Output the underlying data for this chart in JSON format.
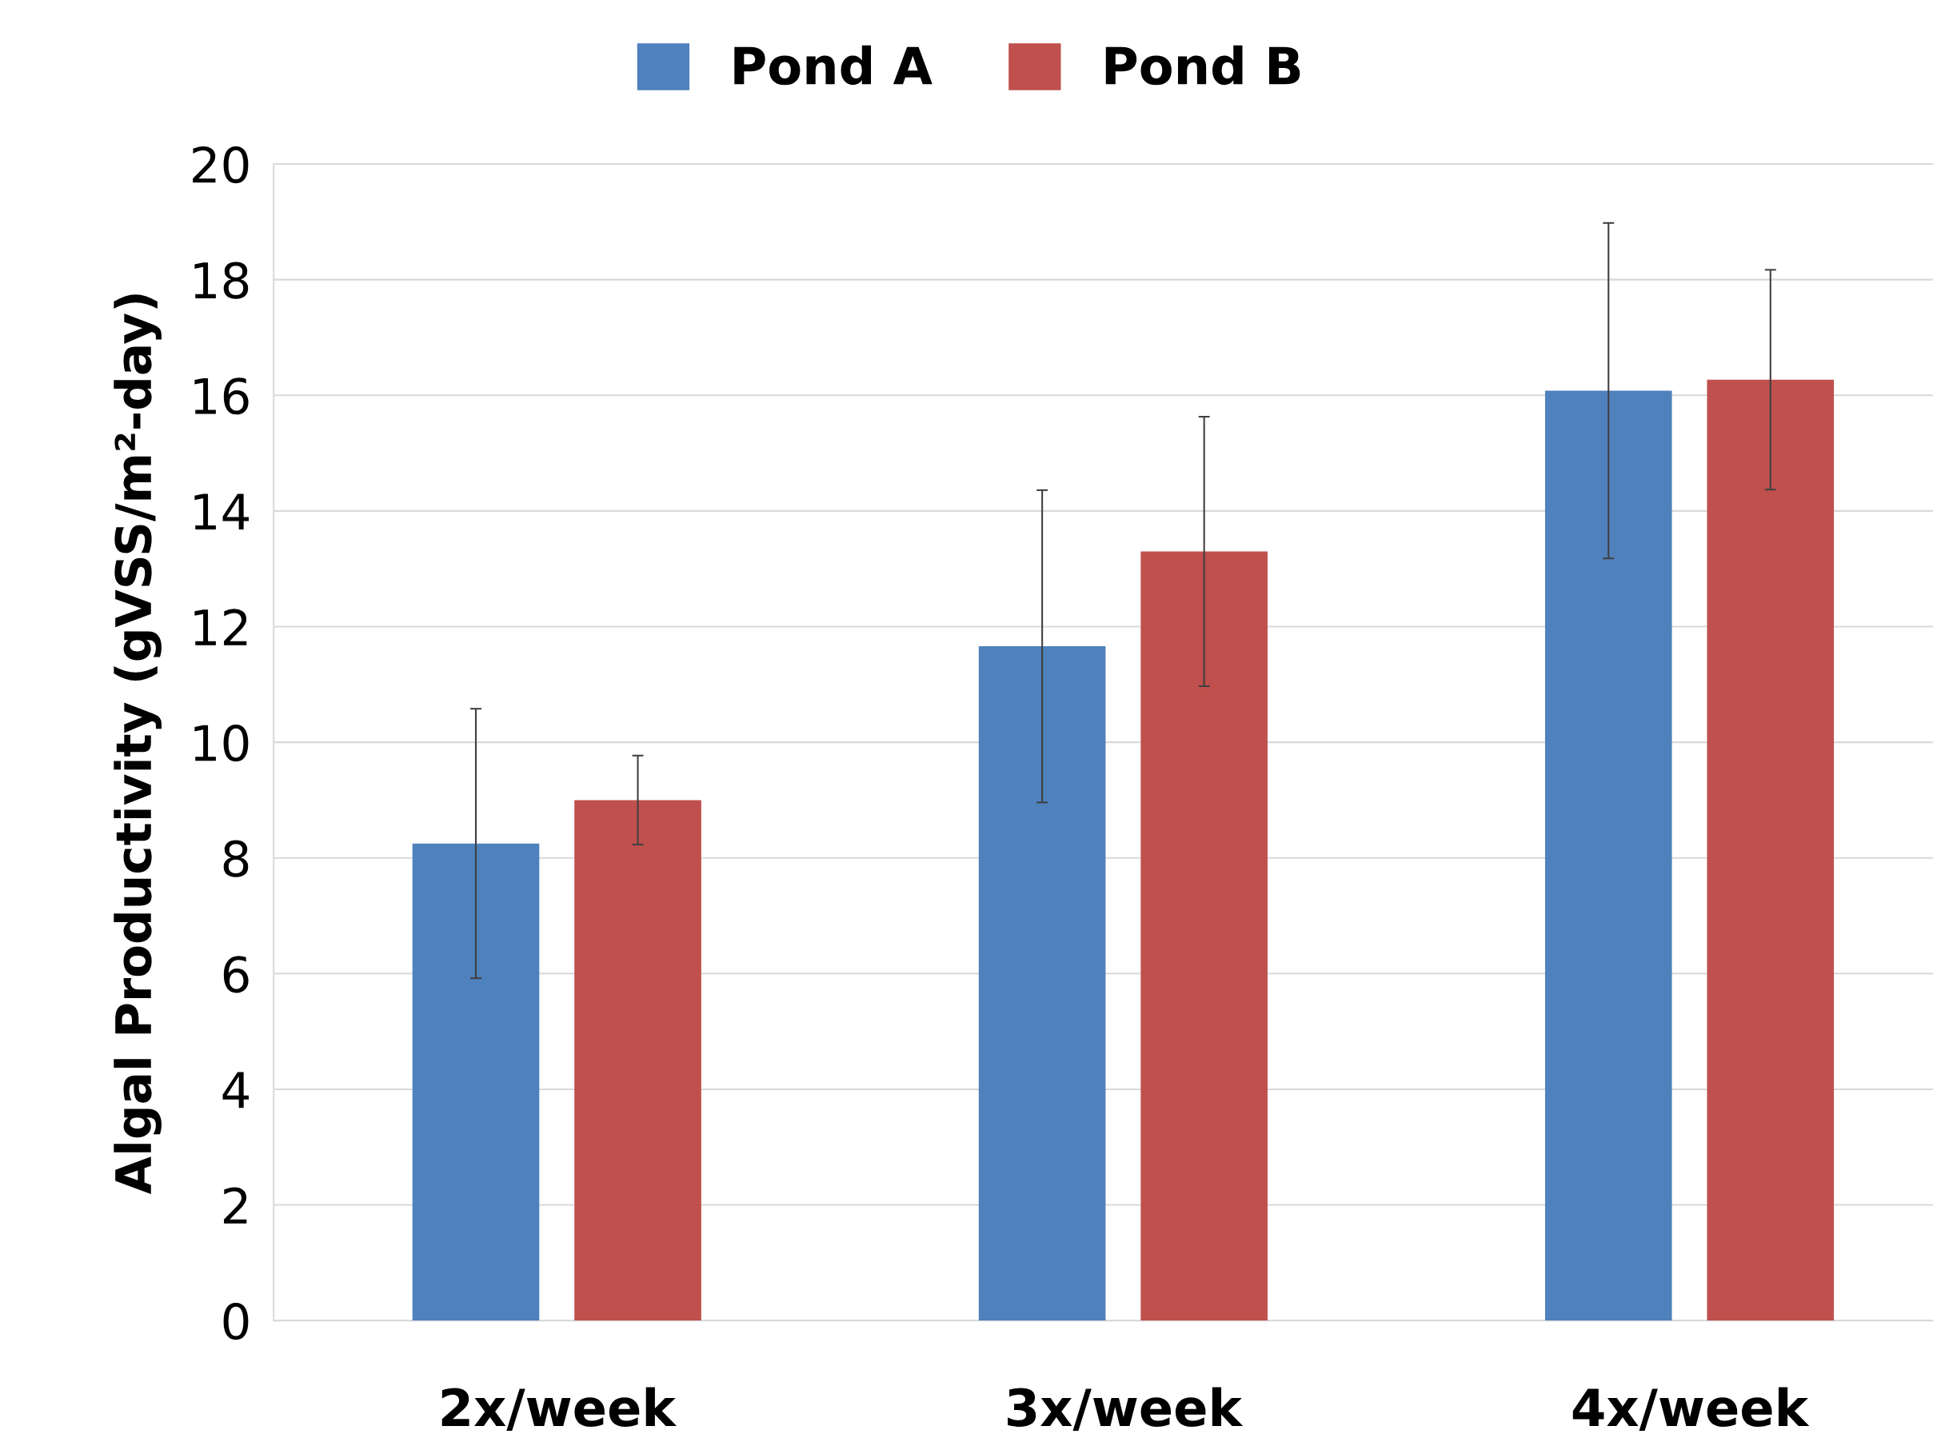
{
  "chart_data": {
    "type": "bar",
    "ylabel": "Algal Productivity (gVSS/m²-day)",
    "categories": [
      "2x/week",
      "3x/week",
      "4x/week"
    ],
    "series": [
      {
        "name": "Pond A",
        "color": "#4f81bd",
        "values": [
          8.25,
          11.66,
          16.08
        ],
        "errors": [
          2.33,
          2.7,
          2.9
        ]
      },
      {
        "name": "Pond B",
        "color": "#c0504d",
        "values": [
          9.0,
          13.3,
          16.27
        ],
        "errors": [
          0.77,
          2.33,
          1.9
        ]
      }
    ],
    "ylim": [
      0,
      20
    ],
    "yticks": [
      0,
      2,
      4,
      6,
      8,
      10,
      12,
      14,
      16,
      18,
      20
    ],
    "grid": "y",
    "legend": "top"
  }
}
